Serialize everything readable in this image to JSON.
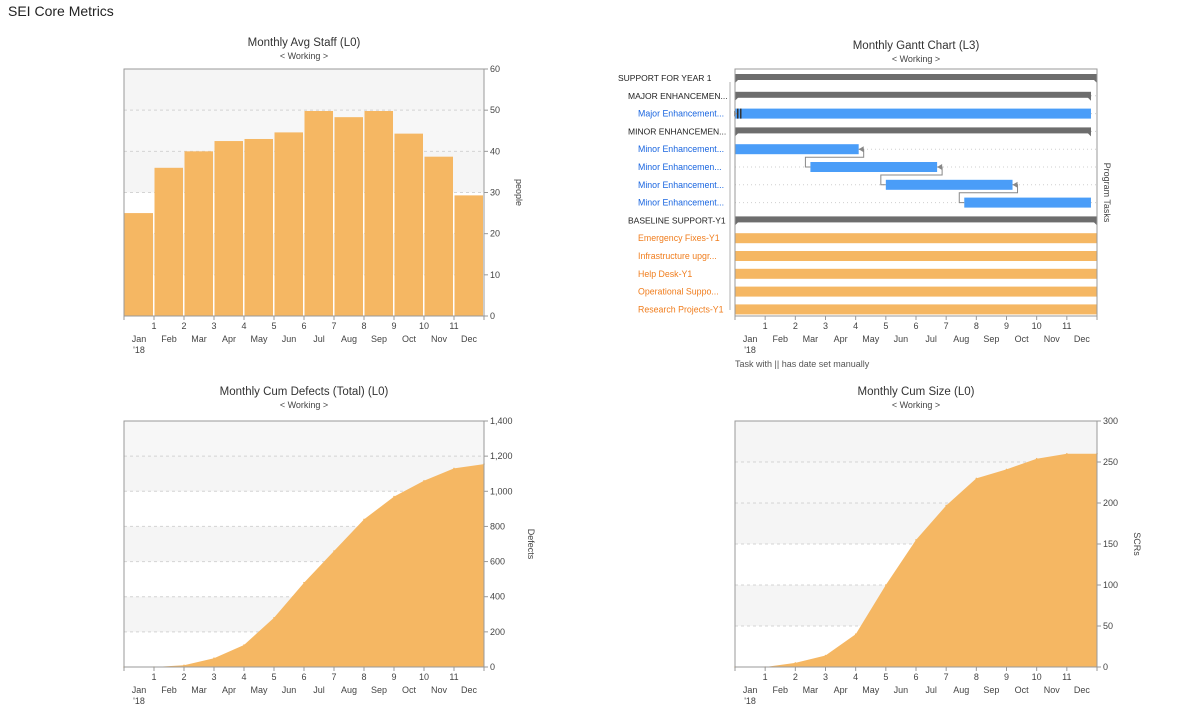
{
  "page": {
    "title": "SEI Core Metrics"
  },
  "colors": {
    "orange": "#f5b763",
    "blue": "#4a9df8",
    "summary": "#6d6d6d",
    "task_blue_text": "#1a66e0",
    "task_orange_text": "#f07d1d"
  },
  "months": [
    "Jan",
    "Feb",
    "Mar",
    "Apr",
    "May",
    "Jun",
    "Jul",
    "Aug",
    "Sep",
    "Oct",
    "Nov",
    "Dec"
  ],
  "month_numbers": [
    "1",
    "2",
    "3",
    "4",
    "5",
    "6",
    "7",
    "8",
    "9",
    "10",
    "11"
  ],
  "year_label": "'18",
  "chart_data": [
    {
      "id": "staff",
      "type": "bar",
      "title": "Monthly Avg Staff  (L0)",
      "subtitle": "< Working >",
      "ylabel": "people",
      "ylim": [
        0,
        60
      ],
      "yticks": [
        "0",
        "10",
        "20",
        "30",
        "40",
        "50",
        "60"
      ],
      "categories": [
        "Jan",
        "Feb",
        "Mar",
        "Apr",
        "May",
        "Jun",
        "Jul",
        "Aug",
        "Sep",
        "Oct",
        "Nov",
        "Dec"
      ],
      "values": [
        25,
        36,
        40,
        42.5,
        43,
        44.6,
        49.8,
        48.3,
        49.8,
        44.3,
        38.7,
        29.3
      ]
    },
    {
      "id": "gantt",
      "type": "gantt",
      "title": "Monthly Gantt Chart  (L3)",
      "subtitle": "< Working >",
      "ylabel": "Program Tasks",
      "note": "Task with || has date set manually",
      "tasks": [
        {
          "label": "SUPPORT FOR YEAR 1",
          "kind": "summary",
          "level": 0,
          "start": 0,
          "end": 12
        },
        {
          "label": "MAJOR ENHANCEMEN...",
          "kind": "summary",
          "level": 1,
          "start": 0,
          "end": 11.8
        },
        {
          "label": "Major Enhancement...",
          "kind": "blue",
          "level": 2,
          "start": 0,
          "end": 11.8
        },
        {
          "label": "MINOR ENHANCEMEN...",
          "kind": "summary",
          "level": 1,
          "start": 0,
          "end": 11.8
        },
        {
          "label": "Minor Enhancement...",
          "kind": "blue",
          "level": 2,
          "start": 0,
          "end": 4.1
        },
        {
          "label": "Minor Enhancemen...",
          "kind": "blue",
          "level": 2,
          "start": 2.5,
          "end": 6.7
        },
        {
          "label": "Minor Enhancement...",
          "kind": "blue",
          "level": 2,
          "start": 5.0,
          "end": 9.2
        },
        {
          "label": "Minor Enhancement...",
          "kind": "blue",
          "level": 2,
          "start": 7.6,
          "end": 11.8
        },
        {
          "label": "BASELINE SUPPORT-Y1",
          "kind": "summary",
          "level": 1,
          "start": 0,
          "end": 12
        },
        {
          "label": "Emergency Fixes-Y1",
          "kind": "orange",
          "level": 2,
          "start": 0,
          "end": 12
        },
        {
          "label": "Infrastructure upgr...",
          "kind": "orange",
          "level": 2,
          "start": 0,
          "end": 12
        },
        {
          "label": "Help Desk-Y1",
          "kind": "orange",
          "level": 2,
          "start": 0,
          "end": 12
        },
        {
          "label": "Operational Suppo...",
          "kind": "orange",
          "level": 2,
          "start": 0,
          "end": 12
        },
        {
          "label": "Research Projects-Y1",
          "kind": "orange",
          "level": 2,
          "start": 0,
          "end": 12
        }
      ]
    },
    {
      "id": "defects",
      "type": "area",
      "title": "Monthly Cum Defects (Total)  (L0)",
      "subtitle": "< Working >",
      "ylabel": "Defects",
      "ylim": [
        0,
        1400
      ],
      "yticks": [
        "0",
        "200",
        "400",
        "600",
        "800",
        "1,000",
        "1,200",
        "1,400"
      ],
      "x": [
        0,
        1,
        2,
        3,
        4,
        5,
        6,
        7,
        8,
        9,
        10,
        11,
        12
      ],
      "values": [
        0,
        0,
        10,
        50,
        125,
        280,
        480,
        660,
        840,
        970,
        1060,
        1130,
        1155
      ]
    },
    {
      "id": "size",
      "type": "area",
      "title": "Monthly Cum Size  (L0)",
      "subtitle": "< Working >",
      "ylabel": "SCRs",
      "ylim": [
        0,
        300
      ],
      "yticks": [
        "0",
        "50",
        "100",
        "150",
        "200",
        "250",
        "300"
      ],
      "x": [
        0,
        1,
        2,
        3,
        4,
        5,
        6,
        7,
        8,
        9,
        10,
        11,
        12
      ],
      "values": [
        0,
        0,
        5,
        14,
        40,
        100,
        155,
        197,
        230,
        241,
        254,
        260,
        260
      ]
    }
  ]
}
